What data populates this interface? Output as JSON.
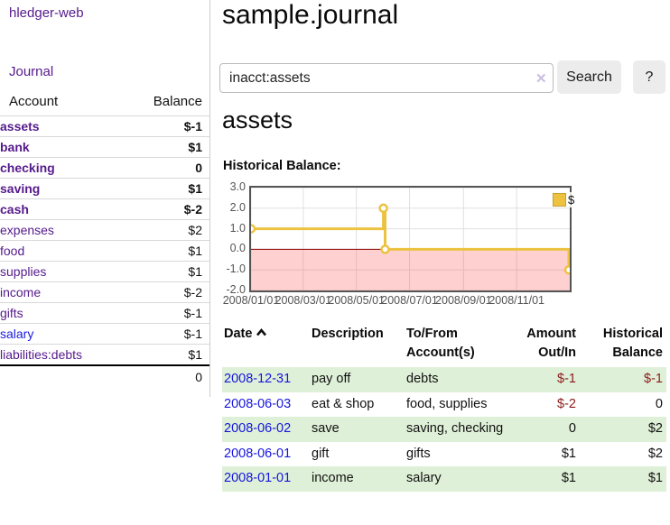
{
  "sidebar": {
    "brand": "hledger-web",
    "nav": {
      "journal": "Journal"
    },
    "accounts_table": {
      "headers": {
        "account": "Account",
        "balance": "Balance"
      },
      "rows": [
        {
          "name": "assets",
          "balance": "$-1"
        },
        {
          "name": "bank",
          "balance": "$1"
        },
        {
          "name": "checking",
          "balance": "0"
        },
        {
          "name": "saving",
          "balance": "$1"
        },
        {
          "name": "cash",
          "balance": "$-2"
        },
        {
          "name": "expenses",
          "balance": "$2"
        },
        {
          "name": "food",
          "balance": "$1"
        },
        {
          "name": "supplies",
          "balance": "$1"
        },
        {
          "name": "income",
          "balance": "$-2"
        },
        {
          "name": "gifts",
          "balance": "$-1"
        },
        {
          "name": "salary",
          "balance": "$-1"
        },
        {
          "name": "liabilities:debts",
          "balance": "$1"
        }
      ],
      "total": "0"
    }
  },
  "header": {
    "title": "sample.journal"
  },
  "search": {
    "value": "inacct:assets",
    "clear_icon": "✕",
    "search_label": "Search",
    "help_label": "?"
  },
  "account_page": {
    "heading": "assets",
    "chart_label": "Historical Balance:"
  },
  "chart_data": {
    "type": "line",
    "step": true,
    "title": "Historical Balance",
    "series": [
      {
        "name": "$",
        "color": "#edc240",
        "points": [
          [
            "2008-01-01",
            1
          ],
          [
            "2008-06-01",
            2
          ],
          [
            "2008-06-03",
            0
          ],
          [
            "2008-12-31",
            -1
          ]
        ]
      }
    ],
    "x_start": "2008-01-01",
    "x_span_days": 366,
    "x_ticks": [
      {
        "d": "2008-01-01",
        "label": "2008/01/01"
      },
      {
        "d": "2008-03-01",
        "label": "2008/03/01"
      },
      {
        "d": "2008-05-01",
        "label": "2008/05/01"
      },
      {
        "d": "2008-07-01",
        "label": "2008/07/01"
      },
      {
        "d": "2008-09-01",
        "label": "2008/09/01"
      },
      {
        "d": "2008-11-01",
        "label": "2008/11/01"
      }
    ],
    "ylim": [
      -2,
      3
    ],
    "y_ticks": [
      {
        "v": 3,
        "label": "3.0"
      },
      {
        "v": 2,
        "label": "2.0"
      },
      {
        "v": 1,
        "label": "1.0"
      },
      {
        "v": 0,
        "label": "0.0"
      },
      {
        "v": -1,
        "label": "-1.0"
      },
      {
        "v": -2,
        "label": "-2.0"
      }
    ],
    "grid": true,
    "grid_color": "#e0e0e0",
    "negative_region_color": "rgba(255,80,80,0.27)",
    "zero_line_color": "#8b0000",
    "legend": {
      "label": "$",
      "position": "top-right"
    }
  },
  "register": {
    "headers": {
      "date": "Date",
      "description": "Description",
      "account": "To/From Account(s)",
      "amount": "Amount Out/In",
      "balance": "Historical Balance"
    },
    "rows": [
      {
        "date": "2008-12-31",
        "description": "pay off",
        "accounts": "debts",
        "amount": "$-1",
        "balance": "$-1"
      },
      {
        "date": "2008-06-03",
        "description": "eat & shop",
        "accounts": "food, supplies",
        "amount": "$-2",
        "balance": "0"
      },
      {
        "date": "2008-06-02",
        "description": "save",
        "accounts": "saving, checking",
        "amount": "0",
        "balance": "$2"
      },
      {
        "date": "2008-06-01",
        "description": "gift",
        "accounts": "gifts",
        "amount": "$1",
        "balance": "$2"
      },
      {
        "date": "2008-01-01",
        "description": "income",
        "accounts": "salary",
        "amount": "$1",
        "balance": "$1"
      }
    ]
  }
}
